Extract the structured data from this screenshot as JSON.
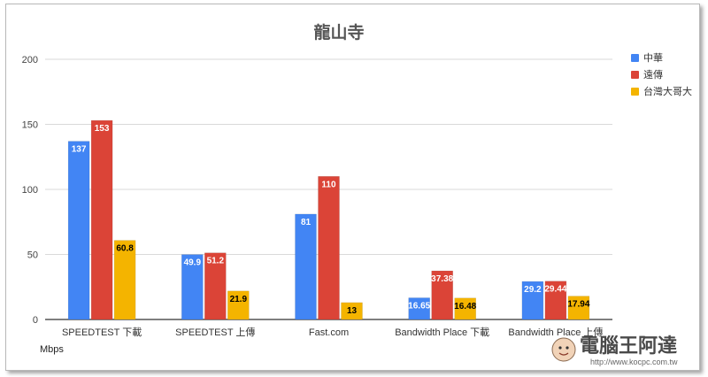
{
  "chart_data": {
    "type": "bar",
    "title": "龍山寺",
    "ylabel": "Mbps",
    "ylim": [
      0,
      200
    ],
    "yticks": [
      0,
      50,
      100,
      150,
      200
    ],
    "grid": true,
    "legend_position": "right",
    "categories": [
      "SPEEDTEST 下載",
      "SPEEDTEST 上傳",
      "Fast.com",
      "Bandwidth Place 下載",
      "Bandwidth Place 上傳"
    ],
    "series": [
      {
        "name": "中華",
        "color": "#4285f4",
        "label_color": "#ffffff",
        "values": [
          137,
          49.9,
          81,
          16.65,
          29.2
        ]
      },
      {
        "name": "遠傳",
        "color": "#db4437",
        "label_color": "#ffffff",
        "values": [
          153,
          51.2,
          110,
          37.38,
          29.44
        ]
      },
      {
        "name": "台灣大哥大",
        "color": "#f4b400",
        "label_color": "#000000",
        "values": [
          60.8,
          21.9,
          13,
          16.48,
          17.94
        ]
      }
    ]
  },
  "watermark": {
    "text": "電腦王阿達",
    "url": "http://www.kocpc.com.tw"
  }
}
